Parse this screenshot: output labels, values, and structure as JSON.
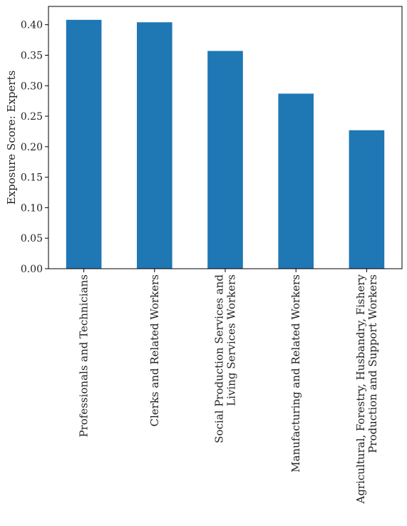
{
  "chart_data": {
    "type": "bar",
    "title": "",
    "xlabel": "",
    "ylabel": "Exposure Score: Experts",
    "ylim": [
      0,
      0.43
    ],
    "yticks": [
      "0.00",
      "0.05",
      "0.10",
      "0.15",
      "0.20",
      "0.25",
      "0.30",
      "0.35",
      "0.40"
    ],
    "grid": false,
    "bar_color": "#1f77b4",
    "categories": [
      [
        "Professionals and Technicians"
      ],
      [
        "Clerks and Related Workers"
      ],
      [
        "Social Production Services and",
        "Living Services Workers"
      ],
      [
        "Manufacturing and Related Workers"
      ],
      [
        "Agricultural, Forestry, Husbandry, Fishery",
        "Production and Support Workers"
      ]
    ],
    "values": [
      0.408,
      0.404,
      0.357,
      0.287,
      0.227
    ]
  }
}
